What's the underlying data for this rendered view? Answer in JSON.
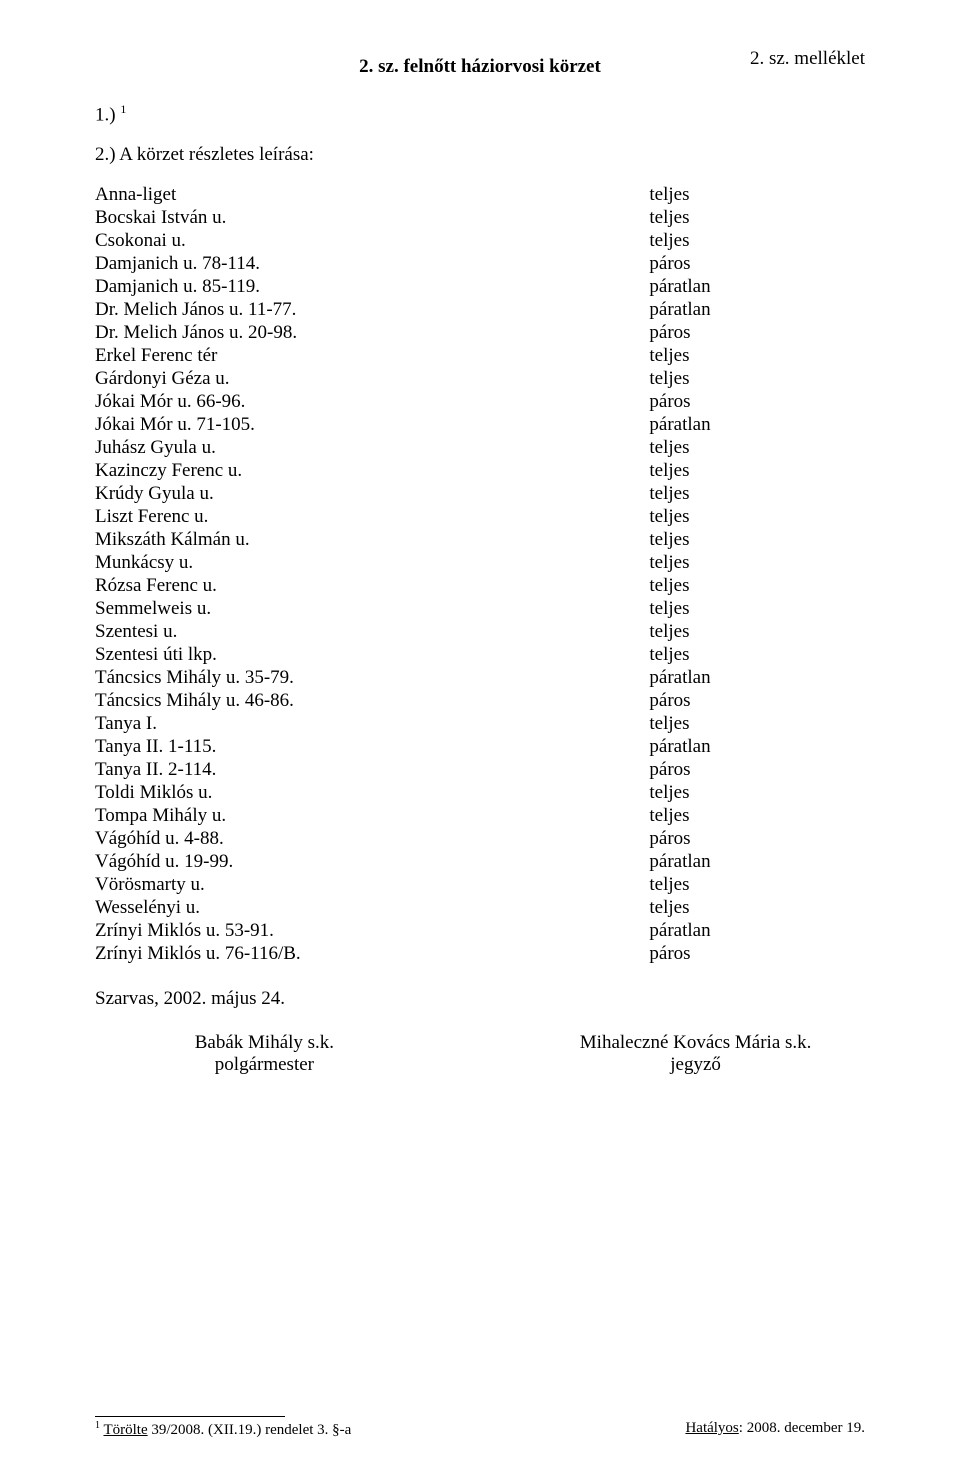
{
  "header": {
    "annex": "2. sz. melléklet",
    "title": "2. sz. felnőtt háziorvosi körzet"
  },
  "section1": {
    "label": "1.)",
    "sup": "1"
  },
  "section2": {
    "label": "2.) A körzet részletes leírása:"
  },
  "streets": [
    {
      "name": "Anna-liget",
      "type": "teljes"
    },
    {
      "name": "Bocskai István u.",
      "type": "teljes"
    },
    {
      "name": "Csokonai u.",
      "type": "teljes"
    },
    {
      "name": "Damjanich u. 78-114.",
      "type": "páros"
    },
    {
      "name": "Damjanich u. 85-119.",
      "type": "páratlan"
    },
    {
      "name": "Dr. Melich János u. 11-77.",
      "type": "páratlan"
    },
    {
      "name": "Dr. Melich János u. 20-98.",
      "type": "páros"
    },
    {
      "name": "Erkel Ferenc tér",
      "type": "teljes"
    },
    {
      "name": "Gárdonyi Géza u.",
      "type": "teljes"
    },
    {
      "name": "Jókai Mór u. 66-96.",
      "type": "páros"
    },
    {
      "name": "Jókai Mór u. 71-105.",
      "type": "páratlan"
    },
    {
      "name": "Juhász Gyula u.",
      "type": "teljes"
    },
    {
      "name": "Kazinczy Ferenc u.",
      "type": "teljes"
    },
    {
      "name": "Krúdy Gyula u.",
      "type": "teljes"
    },
    {
      "name": "Liszt Ferenc u.",
      "type": "teljes"
    },
    {
      "name": "Mikszáth Kálmán u.",
      "type": "teljes"
    },
    {
      "name": "Munkácsy u.",
      "type": "teljes"
    },
    {
      "name": "Rózsa Ferenc u.",
      "type": "teljes"
    },
    {
      "name": "Semmelweis u.",
      "type": "teljes"
    },
    {
      "name": "Szentesi u.",
      "type": "teljes"
    },
    {
      "name": "Szentesi úti lkp.",
      "type": "teljes"
    },
    {
      "name": "Táncsics Mihály u. 35-79.",
      "type": "páratlan"
    },
    {
      "name": "Táncsics Mihály u. 46-86.",
      "type": "páros"
    },
    {
      "name": "Tanya I.",
      "type": "teljes"
    },
    {
      "name": "Tanya II. 1-115.",
      "type": "páratlan"
    },
    {
      "name": "Tanya II. 2-114.",
      "type": "páros"
    },
    {
      "name": "Toldi Miklós u.",
      "type": "teljes"
    },
    {
      "name": "Tompa Mihály u.",
      "type": "teljes"
    },
    {
      "name": "Vágóhíd u. 4-88.",
      "type": "páros"
    },
    {
      "name": "Vágóhíd u. 19-99.",
      "type": "páratlan"
    },
    {
      "name": "Vörösmarty u.",
      "type": "teljes"
    },
    {
      "name": "Wesselényi u.",
      "type": "teljes"
    },
    {
      "name": "Zrínyi Miklós u. 53-91.",
      "type": "páratlan"
    },
    {
      "name": "Zrínyi Miklós u. 76-116/B.",
      "type": "páros"
    }
  ],
  "date": "Szarvas, 2002. május 24.",
  "signatories": {
    "left": {
      "name": "Babák Mihály s.k.",
      "role": "polgármester"
    },
    "right": {
      "name": "Mihaleczné Kovács Mária s.k.",
      "role": "jegyző"
    }
  },
  "footnote": {
    "mark": "1",
    "deleted_label": "Törölte",
    "reference": " 39/2008. (XII.19.) rendelet 3. §-a",
    "effective_label": "Hatályos",
    "effective_date": ": 2008. december 19."
  }
}
